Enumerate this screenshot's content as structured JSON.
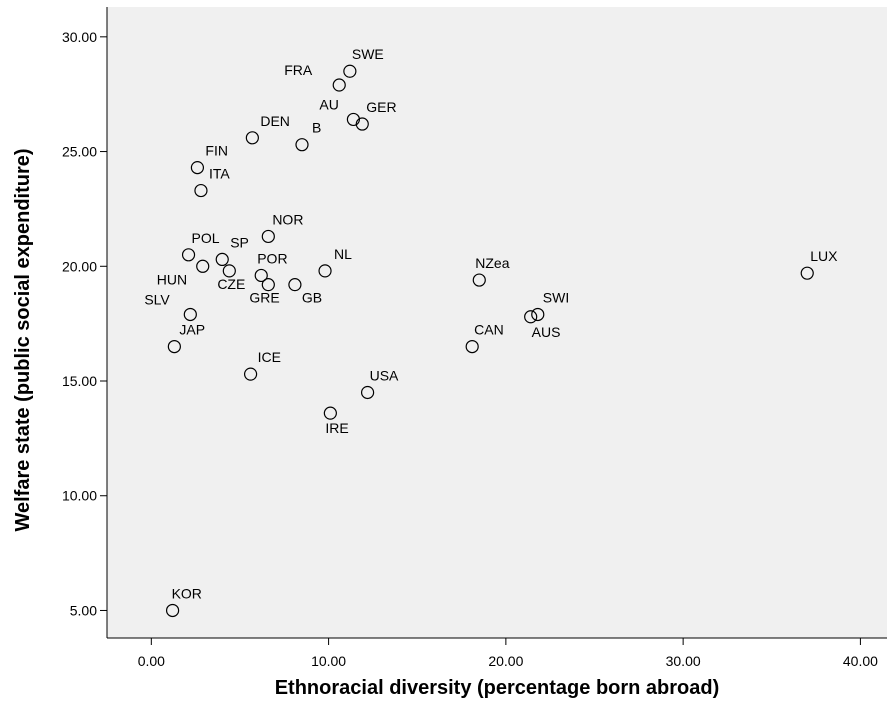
{
  "chart_data": {
    "type": "scatter",
    "xlabel": "Ethnoracial diversity (percentage born abroad)",
    "ylabel": "Welfare state (public social expenditure)",
    "xlim": [
      -2.5,
      41.5
    ],
    "ylim": [
      3.8,
      31.3
    ],
    "x_ticks": [
      "0.00",
      "10.00",
      "20.00",
      "30.00",
      "40.00"
    ],
    "y_ticks": [
      "5.00",
      "10.00",
      "15.00",
      "20.00",
      "25.00",
      "30.00"
    ],
    "grid": false,
    "background": "#f0f0f0",
    "points": [
      {
        "label": "SWE",
        "x": 11.2,
        "y": 28.5
      },
      {
        "label": "FRA",
        "x": 10.6,
        "y": 27.9
      },
      {
        "label": "AU",
        "x": 11.4,
        "y": 26.4
      },
      {
        "label": "GER",
        "x": 11.9,
        "y": 26.2
      },
      {
        "label": "DEN",
        "x": 5.7,
        "y": 25.6
      },
      {
        "label": "B",
        "x": 8.5,
        "y": 25.3
      },
      {
        "label": "FIN",
        "x": 2.6,
        "y": 24.3
      },
      {
        "label": "ITA",
        "x": 2.8,
        "y": 23.3
      },
      {
        "label": "NOR",
        "x": 6.6,
        "y": 21.3
      },
      {
        "label": "POL",
        "x": 2.1,
        "y": 20.5
      },
      {
        "label": "SP",
        "x": 4.0,
        "y": 20.3
      },
      {
        "label": "HUN",
        "x": 2.9,
        "y": 20.0
      },
      {
        "label": "CZE",
        "x": 4.4,
        "y": 19.8
      },
      {
        "label": "POR",
        "x": 6.2,
        "y": 19.6
      },
      {
        "label": "NL",
        "x": 9.8,
        "y": 19.8
      },
      {
        "label": "GRE",
        "x": 6.6,
        "y": 19.2
      },
      {
        "label": "GB",
        "x": 8.1,
        "y": 19.2
      },
      {
        "label": "SLV",
        "x": 2.2,
        "y": 17.9
      },
      {
        "label": "JAP",
        "x": 1.3,
        "y": 16.5
      },
      {
        "label": "ICE",
        "x": 5.6,
        "y": 15.3
      },
      {
        "label": "USA",
        "x": 12.2,
        "y": 14.5
      },
      {
        "label": "IRE",
        "x": 10.1,
        "y": 13.6
      },
      {
        "label": "NZea",
        "x": 18.5,
        "y": 19.4
      },
      {
        "label": "SWI",
        "x": 21.8,
        "y": 17.9
      },
      {
        "label": "AUS",
        "x": 21.4,
        "y": 17.8
      },
      {
        "label": "CAN",
        "x": 18.1,
        "y": 16.5
      },
      {
        "label": "LUX",
        "x": 37.0,
        "y": 19.7
      },
      {
        "label": "KOR",
        "x": 1.2,
        "y": 5.0
      }
    ]
  }
}
